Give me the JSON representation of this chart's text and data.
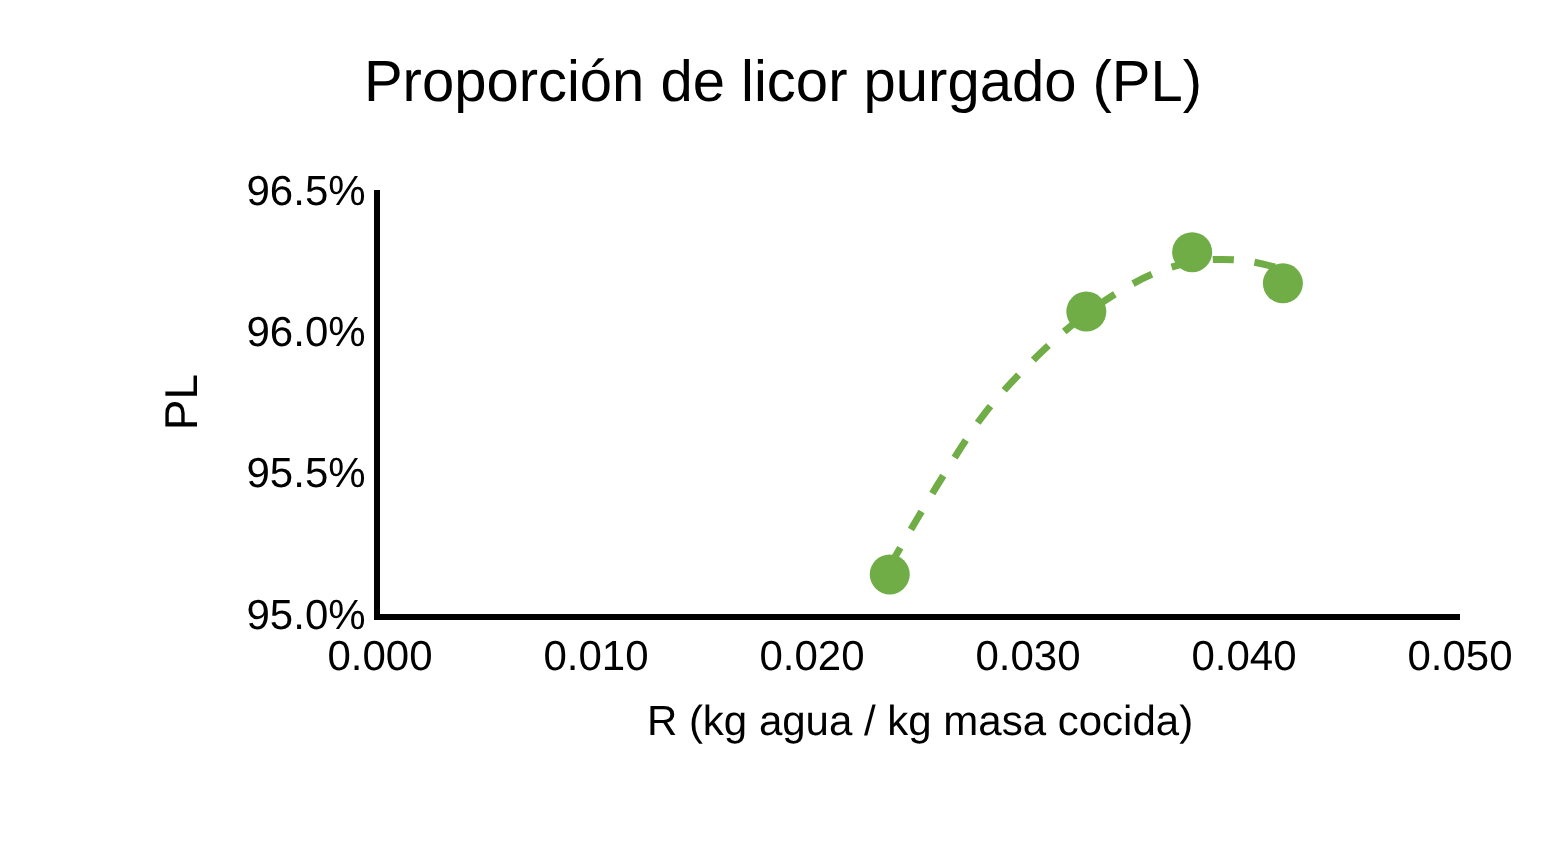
{
  "chart_data": {
    "type": "scatter",
    "title": "Proporción de licor purgado (PL)",
    "xlabel": "R (kg agua / kg masa cocida)",
    "ylabel": "PL",
    "series": [
      {
        "color": "#70ad47",
        "marker": "circle",
        "x": [
          0.0236,
          0.0327,
          0.0376,
          0.0418
        ],
        "values": [
          95.14,
          96.07,
          96.28,
          96.17
        ]
      },
      {
        "type": "line",
        "color": "#70ad47",
        "marker": "none",
        "line_style": "dashed",
        "x": [
          0.0236,
          0.026,
          0.028,
          0.03,
          0.032,
          0.034,
          0.036,
          0.038,
          0.04,
          0.0418
        ],
        "values": [
          95.17,
          95.48,
          95.71,
          95.88,
          96.02,
          96.13,
          96.21,
          96.25,
          96.25,
          96.22
        ]
      }
    ],
    "xlim": [
      0,
      0.05
    ],
    "xticks": [
      {
        "value": 0,
        "label": "0.000"
      },
      {
        "value": 0.01,
        "label": "0.010"
      },
      {
        "value": 0.02,
        "label": "0.020"
      },
      {
        "value": 0.03,
        "label": "0.030"
      },
      {
        "value": 0.04,
        "label": "0.040"
      },
      {
        "value": 0.05,
        "label": "0.050"
      }
    ],
    "ylim": [
      95,
      96.5
    ],
    "yticks": [
      {
        "value": 95,
        "label": "95.0%"
      },
      {
        "value": 95.5,
        "label": "95.5%"
      },
      {
        "value": 96,
        "label": "96.0%"
      },
      {
        "value": 96.5,
        "label": "96.5%"
      }
    ],
    "grid": false
  }
}
